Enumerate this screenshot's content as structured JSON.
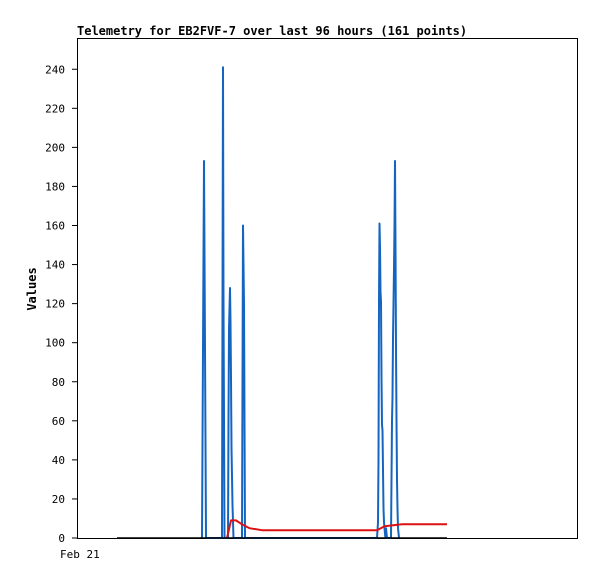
{
  "chart_data": {
    "type": "line",
    "title": "Telemetry for EB2FVF-7 over last 96 hours (161 points)",
    "xlabel": "",
    "ylabel": "Values",
    "x_tick_labels": [
      "Feb 21"
    ],
    "ylim": [
      0,
      256
    ],
    "yticks": [
      0,
      20,
      40,
      60,
      80,
      100,
      120,
      140,
      160,
      180,
      200,
      220,
      240
    ],
    "grid": false,
    "legend": "none",
    "colors": {
      "spikes": "#1565c0",
      "smooth": "#dd1111",
      "base": "#000000",
      "axis": "#000000"
    },
    "series": [
      {
        "color": "#1565c0",
        "x": [
          0.25,
          0.252,
          0.254,
          0.256,
          0.258,
          0.26,
          0.29,
          0.291,
          0.292,
          0.293,
          0.295,
          0.297,
          0.302,
          0.303,
          0.304,
          0.306,
          0.307,
          0.308,
          0.309,
          0.311,
          0.313,
          0.33,
          0.331,
          0.332,
          0.334,
          0.336,
          0.6,
          0.602,
          0.603,
          0.604,
          0.605,
          0.606,
          0.607,
          0.608,
          0.609,
          0.61,
          0.611,
          0.612,
          0.613,
          0.614,
          0.615,
          0.616,
          0.617,
          0.618,
          0.62,
          0.622,
          0.624,
          0.626,
          0.628,
          0.629,
          0.63,
          0.631,
          0.632,
          0.633,
          0.634,
          0.635,
          0.636,
          0.637,
          0.638,
          0.639,
          0.64,
          0.641,
          0.642,
          0.644
        ],
        "y": [
          0,
          97,
          193,
          97,
          0,
          0,
          0,
          121,
          241,
          121,
          0,
          0,
          0,
          60,
          107,
          128,
          111,
          82,
          46,
          17,
          0,
          0,
          80,
          160,
          120,
          0,
          0,
          8,
          40,
          120,
          161,
          149,
          126,
          121,
          82,
          58,
          55,
          35,
          15,
          8,
          5,
          2,
          0,
          5,
          0,
          0,
          0,
          0,
          0,
          30,
          60,
          72,
          102,
          120,
          138,
          160,
          193,
          150,
          97,
          60,
          30,
          15,
          5,
          0
        ],
        "width": 2
      },
      {
        "color": "#dd1111",
        "x": [
          0.3,
          0.308,
          0.318,
          0.33,
          0.345,
          0.37,
          0.42,
          0.5,
          0.56,
          0.6,
          0.615,
          0.65,
          0.7,
          0.74
        ],
        "y": [
          0,
          9,
          9,
          7,
          5,
          4,
          4,
          4,
          4,
          4,
          6,
          7,
          7,
          7
        ],
        "width": 2
      },
      {
        "color": "#000000",
        "x": [
          0.08,
          0.74
        ],
        "y": [
          0,
          0
        ],
        "width": 1.5
      }
    ]
  }
}
